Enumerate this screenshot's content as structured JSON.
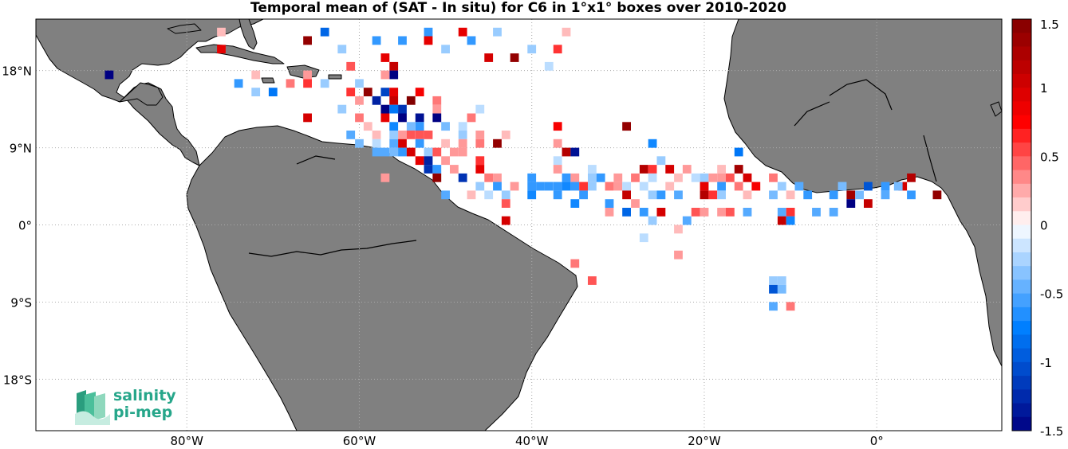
{
  "title": "Temporal mean of (SAT - In situ) for C6 in 1°x1° boxes over 2010-2020",
  "map": {
    "lat_ticks": [
      {
        "value": 18,
        "label": "18°N"
      },
      {
        "value": 9,
        "label": "9°N"
      },
      {
        "value": 0,
        "label": "0°"
      },
      {
        "value": -9,
        "label": "9°S"
      },
      {
        "value": -18,
        "label": "18°S"
      }
    ],
    "lon_ticks": [
      {
        "value": -80,
        "label": "80°W"
      },
      {
        "value": -60,
        "label": "60°W"
      },
      {
        "value": -40,
        "label": "40°W"
      },
      {
        "value": -20,
        "label": "20°W"
      },
      {
        "value": 0,
        "label": "0°"
      }
    ],
    "lon_range": [
      -97.5,
      14.5
    ],
    "lat_range": [
      -24,
      24
    ]
  },
  "colorbar": {
    "min": -1.5,
    "max": 1.5,
    "tick_labels": [
      "1.5",
      "1",
      "0.5",
      "0",
      "-0.5",
      "-1",
      "-1.5"
    ]
  },
  "logo": {
    "line1": "salinity",
    "line2": "pi-mep"
  },
  "colors": {
    "land": "#808080",
    "coast": "#000000",
    "grid": "#aaaaaa"
  },
  "chart_data": {
    "type": "heatmap",
    "title": "Temporal mean of (SAT - In situ) for C6 in 1°x1° boxes over 2010-2020",
    "xlabel": "",
    "ylabel": "",
    "xlim": [
      -97.5,
      14.5
    ],
    "ylim": [
      -24,
      24
    ],
    "colorbar_range": [
      -1.5,
      1.5
    ],
    "cells": [
      {
        "lon": -76,
        "lat": 22.5,
        "v": 0.2
      },
      {
        "lon": -64,
        "lat": 22.5,
        "v": -0.9
      },
      {
        "lon": -52,
        "lat": 22.5,
        "v": -0.6
      },
      {
        "lon": -48,
        "lat": 22.5,
        "v": 0.9
      },
      {
        "lon": -44,
        "lat": 22.5,
        "v": -0.3
      },
      {
        "lon": -36,
        "lat": 22.5,
        "v": 0.2
      },
      {
        "lon": -66,
        "lat": 21.5,
        "v": 1.4
      },
      {
        "lon": -58,
        "lat": 21.5,
        "v": -0.6
      },
      {
        "lon": -55,
        "lat": 21.5,
        "v": -0.6
      },
      {
        "lon": -52,
        "lat": 21.5,
        "v": 0.9
      },
      {
        "lon": -47,
        "lat": 21.5,
        "v": -0.6
      },
      {
        "lon": -76,
        "lat": 20.5,
        "v": 0.9
      },
      {
        "lon": -62,
        "lat": 20.5,
        "v": -0.3
      },
      {
        "lon": -50,
        "lat": 20.5,
        "v": -0.3
      },
      {
        "lon": -40,
        "lat": 20.5,
        "v": -0.3
      },
      {
        "lon": -37,
        "lat": 20.5,
        "v": 0.6
      },
      {
        "lon": -45,
        "lat": 19.5,
        "v": 1.0
      },
      {
        "lon": -42,
        "lat": 19.5,
        "v": 1.4
      },
      {
        "lon": -57,
        "lat": 19.5,
        "v": 0.9
      },
      {
        "lon": -61,
        "lat": 18.5,
        "v": 0.5
      },
      {
        "lon": -56,
        "lat": 18.5,
        "v": 1.1
      },
      {
        "lon": -38,
        "lat": 18.5,
        "v": -0.2
      },
      {
        "lon": -56,
        "lat": 17.5,
        "v": -1.5
      },
      {
        "lon": -89,
        "lat": 17.5,
        "v": -1.5
      },
      {
        "lon": -72,
        "lat": 17.5,
        "v": 0.2
      },
      {
        "lon": -66,
        "lat": 17.5,
        "v": 0.3
      },
      {
        "lon": -57,
        "lat": 17.5,
        "v": 0.3
      },
      {
        "lon": -74,
        "lat": 16.5,
        "v": -0.6
      },
      {
        "lon": -68,
        "lat": 16.5,
        "v": 0.4
      },
      {
        "lon": -66,
        "lat": 16.5,
        "v": 0.6
      },
      {
        "lon": -64,
        "lat": 16.5,
        "v": -0.3
      },
      {
        "lon": -60,
        "lat": 16.5,
        "v": -0.3
      },
      {
        "lon": -59,
        "lat": 15.5,
        "v": 1.4
      },
      {
        "lon": -57,
        "lat": 15.5,
        "v": -1.1
      },
      {
        "lon": -56,
        "lat": 15.5,
        "v": 0.9
      },
      {
        "lon": -53,
        "lat": 15.5,
        "v": 0.8
      },
      {
        "lon": -70,
        "lat": 15.5,
        "v": -0.8
      },
      {
        "lon": -72,
        "lat": 15.5,
        "v": -0.3
      },
      {
        "lon": -61,
        "lat": 15.5,
        "v": 0.6
      },
      {
        "lon": -58,
        "lat": 14.5,
        "v": -1.3
      },
      {
        "lon": -56,
        "lat": 14.5,
        "v": 1.1
      },
      {
        "lon": -54,
        "lat": 14.5,
        "v": 1.5
      },
      {
        "lon": -51,
        "lat": 14.5,
        "v": 0.4
      },
      {
        "lon": -60,
        "lat": 14.5,
        "v": 0.3
      },
      {
        "lon": -57,
        "lat": 13.5,
        "v": -1.5
      },
      {
        "lon": -56,
        "lat": 13.5,
        "v": -0.8
      },
      {
        "lon": -55,
        "lat": 13.5,
        "v": -1.2
      },
      {
        "lon": -51,
        "lat": 13.5,
        "v": 0.3
      },
      {
        "lon": -62,
        "lat": 13.5,
        "v": -0.3
      },
      {
        "lon": -46,
        "lat": 13.5,
        "v": -0.2
      },
      {
        "lon": -66,
        "lat": 12.5,
        "v": 1.0
      },
      {
        "lon": -60,
        "lat": 12.5,
        "v": 0.4
      },
      {
        "lon": -57,
        "lat": 12.5,
        "v": 0.9
      },
      {
        "lon": -55,
        "lat": 12.5,
        "v": -1.5
      },
      {
        "lon": -53,
        "lat": 12.5,
        "v": -1.4
      },
      {
        "lon": -51,
        "lat": 12.5,
        "v": -1.5
      },
      {
        "lon": -47,
        "lat": 12.5,
        "v": 0.4
      },
      {
        "lon": -59,
        "lat": 11.5,
        "v": 0.2
      },
      {
        "lon": -56,
        "lat": 11.5,
        "v": -0.7
      },
      {
        "lon": -54,
        "lat": 11.5,
        "v": -0.4
      },
      {
        "lon": -53,
        "lat": 11.5,
        "v": -0.6
      },
      {
        "lon": -50,
        "lat": 11.5,
        "v": -0.4
      },
      {
        "lon": -48,
        "lat": 11.5,
        "v": -0.2
      },
      {
        "lon": -37,
        "lat": 11.5,
        "v": 0.8
      },
      {
        "lon": -29,
        "lat": 11.5,
        "v": 1.4
      },
      {
        "lon": -61,
        "lat": 10.5,
        "v": -0.5
      },
      {
        "lon": -58,
        "lat": 10.5,
        "v": 0.2
      },
      {
        "lon": -56,
        "lat": 10.5,
        "v": -0.3
      },
      {
        "lon": -55,
        "lat": 10.5,
        "v": 0.3
      },
      {
        "lon": -54,
        "lat": 10.5,
        "v": 0.5
      },
      {
        "lon": -53,
        "lat": 10.5,
        "v": 0.5
      },
      {
        "lon": -52,
        "lat": 10.5,
        "v": 0.5
      },
      {
        "lon": -48,
        "lat": 10.5,
        "v": -0.3
      },
      {
        "lon": -46,
        "lat": 10.5,
        "v": 0.3
      },
      {
        "lon": -43,
        "lat": 10.5,
        "v": 0.2
      },
      {
        "lon": -60,
        "lat": 9.5,
        "v": -0.4
      },
      {
        "lon": -58,
        "lat": 9.5,
        "v": -0.2
      },
      {
        "lon": -56,
        "lat": 9.5,
        "v": -0.5
      },
      {
        "lon": -55,
        "lat": 9.5,
        "v": 1.0
      },
      {
        "lon": -53,
        "lat": 9.5,
        "v": -0.6
      },
      {
        "lon": -50,
        "lat": 9.5,
        "v": 0.2
      },
      {
        "lon": -48,
        "lat": 9.5,
        "v": 0.3
      },
      {
        "lon": -46,
        "lat": 9.5,
        "v": 0.4
      },
      {
        "lon": -44,
        "lat": 9.5,
        "v": 1.4
      },
      {
        "lon": -37,
        "lat": 9.5,
        "v": 0.3
      },
      {
        "lon": -26,
        "lat": 9.5,
        "v": -0.7
      },
      {
        "lon": -58,
        "lat": 8.5,
        "v": -0.5
      },
      {
        "lon": -57,
        "lat": 8.5,
        "v": -0.5
      },
      {
        "lon": -56,
        "lat": 8.5,
        "v": -0.4
      },
      {
        "lon": -55,
        "lat": 8.5,
        "v": -0.6
      },
      {
        "lon": -54,
        "lat": 8.5,
        "v": 1.0
      },
      {
        "lon": -52,
        "lat": 8.5,
        "v": -0.3
      },
      {
        "lon": -51,
        "lat": 8.5,
        "v": 0.5
      },
      {
        "lon": -49,
        "lat": 8.5,
        "v": 0.3
      },
      {
        "lon": -48,
        "lat": 8.5,
        "v": 0.3
      },
      {
        "lon": -36,
        "lat": 8.5,
        "v": 1.2
      },
      {
        "lon": -35,
        "lat": 8.5,
        "v": -1.4
      },
      {
        "lon": -16,
        "lat": 8.5,
        "v": -0.8
      },
      {
        "lon": -53,
        "lat": 7.5,
        "v": 0.9
      },
      {
        "lon": -52,
        "lat": 7.5,
        "v": -1.3
      },
      {
        "lon": -50,
        "lat": 7.5,
        "v": 0.3
      },
      {
        "lon": -46,
        "lat": 7.5,
        "v": 0.6
      },
      {
        "lon": -37,
        "lat": 7.5,
        "v": -0.2
      },
      {
        "lon": -25,
        "lat": 7.5,
        "v": -0.3
      },
      {
        "lon": -52,
        "lat": 6.5,
        "v": -1.2
      },
      {
        "lon": -51,
        "lat": 6.5,
        "v": -0.6
      },
      {
        "lon": -49,
        "lat": 6.5,
        "v": 0.3
      },
      {
        "lon": -46,
        "lat": 6.5,
        "v": 0.9
      },
      {
        "lon": -37,
        "lat": 6.5,
        "v": 0.3
      },
      {
        "lon": -33,
        "lat": 6.5,
        "v": -0.2
      },
      {
        "lon": -27,
        "lat": 6.5,
        "v": 1.2
      },
      {
        "lon": -26,
        "lat": 6.5,
        "v": 0.6
      },
      {
        "lon": -24,
        "lat": 6.5,
        "v": 1.0
      },
      {
        "lon": -22,
        "lat": 6.5,
        "v": 0.3
      },
      {
        "lon": -18,
        "lat": 6.5,
        "v": 0.2
      },
      {
        "lon": -16,
        "lat": 6.5,
        "v": 1.3
      },
      {
        "lon": -57,
        "lat": 5.5,
        "v": 0.3
      },
      {
        "lon": -51,
        "lat": 5.5,
        "v": 1.4
      },
      {
        "lon": -48,
        "lat": 5.5,
        "v": -1.2
      },
      {
        "lon": -45,
        "lat": 5.5,
        "v": 0.4
      },
      {
        "lon": -44,
        "lat": 5.5,
        "v": 0.3
      },
      {
        "lon": -40,
        "lat": 5.5,
        "v": -0.6
      },
      {
        "lon": -36,
        "lat": 5.5,
        "v": -0.6
      },
      {
        "lon": -35,
        "lat": 5.5,
        "v": 0.3
      },
      {
        "lon": -33,
        "lat": 5.5,
        "v": -0.3
      },
      {
        "lon": -32,
        "lat": 5.5,
        "v": -0.6
      },
      {
        "lon": -30,
        "lat": 5.5,
        "v": 0.3
      },
      {
        "lon": -28,
        "lat": 5.5,
        "v": 0.4
      },
      {
        "lon": -26,
        "lat": 5.5,
        "v": -0.2
      },
      {
        "lon": -23,
        "lat": 5.5,
        "v": 0.2
      },
      {
        "lon": -21,
        "lat": 5.5,
        "v": -0.2
      },
      {
        "lon": -20,
        "lat": 5.5,
        "v": -0.3
      },
      {
        "lon": -19,
        "lat": 5.5,
        "v": 0.3
      },
      {
        "lon": -18,
        "lat": 5.5,
        "v": 0.3
      },
      {
        "lon": -17,
        "lat": 5.5,
        "v": 0.5
      },
      {
        "lon": -15,
        "lat": 5.5,
        "v": 1.0
      },
      {
        "lon": -12,
        "lat": 5.5,
        "v": 0.4
      },
      {
        "lon": 4,
        "lat": 5.5,
        "v": 1.2
      },
      {
        "lon": -46,
        "lat": 4.5,
        "v": -0.3
      },
      {
        "lon": -44,
        "lat": 4.5,
        "v": -0.6
      },
      {
        "lon": -42,
        "lat": 4.5,
        "v": 0.3
      },
      {
        "lon": -40,
        "lat": 4.5,
        "v": -0.6
      },
      {
        "lon": -39,
        "lat": 4.5,
        "v": -0.6
      },
      {
        "lon": -38,
        "lat": 4.5,
        "v": -0.6
      },
      {
        "lon": -37,
        "lat": 4.5,
        "v": -0.6
      },
      {
        "lon": -36,
        "lat": 4.5,
        "v": -0.7
      },
      {
        "lon": -35,
        "lat": 4.5,
        "v": -0.6
      },
      {
        "lon": -34,
        "lat": 4.5,
        "v": 0.6
      },
      {
        "lon": -33,
        "lat": 4.5,
        "v": -0.3
      },
      {
        "lon": -31,
        "lat": 4.5,
        "v": 0.4
      },
      {
        "lon": -30,
        "lat": 4.5,
        "v": 0.3
      },
      {
        "lon": -29,
        "lat": 4.5,
        "v": -0.2
      },
      {
        "lon": -27,
        "lat": 4.5,
        "v": -0.2
      },
      {
        "lon": -24,
        "lat": 4.5,
        "v": 0.2
      },
      {
        "lon": -20,
        "lat": 4.5,
        "v": 0.9
      },
      {
        "lon": -18,
        "lat": 4.5,
        "v": -0.6
      },
      {
        "lon": -16,
        "lat": 4.5,
        "v": 0.4
      },
      {
        "lon": -14,
        "lat": 4.5,
        "v": 0.8
      },
      {
        "lon": -11,
        "lat": 4.5,
        "v": -0.3
      },
      {
        "lon": -9,
        "lat": 4.5,
        "v": -0.5
      },
      {
        "lon": -4,
        "lat": 4.5,
        "v": -0.4
      },
      {
        "lon": -1,
        "lat": 4.5,
        "v": -1.0
      },
      {
        "lon": 1,
        "lat": 4.5,
        "v": -0.6
      },
      {
        "lon": 3,
        "lat": 4.5,
        "v": 1.0
      },
      {
        "lon": 2.5,
        "lat": 4.5,
        "v": -0.4
      },
      {
        "lon": -50,
        "lat": 3.5,
        "v": -0.5
      },
      {
        "lon": -47,
        "lat": 3.5,
        "v": 0.2
      },
      {
        "lon": -45,
        "lat": 3.5,
        "v": -0.2
      },
      {
        "lon": -43,
        "lat": 3.5,
        "v": -0.3
      },
      {
        "lon": -40,
        "lat": 3.5,
        "v": -0.7
      },
      {
        "lon": -37,
        "lat": 3.5,
        "v": -0.6
      },
      {
        "lon": -34,
        "lat": 3.5,
        "v": -0.6
      },
      {
        "lon": -29,
        "lat": 3.5,
        "v": 1.1
      },
      {
        "lon": -26,
        "lat": 3.5,
        "v": -0.3
      },
      {
        "lon": -25,
        "lat": 3.5,
        "v": -0.6
      },
      {
        "lon": -23,
        "lat": 3.5,
        "v": -0.5
      },
      {
        "lon": -20,
        "lat": 3.5,
        "v": 1.2
      },
      {
        "lon": -19,
        "lat": 3.5,
        "v": 0.6
      },
      {
        "lon": -18,
        "lat": 3.5,
        "v": -0.3
      },
      {
        "lon": -15,
        "lat": 3.5,
        "v": 0.2
      },
      {
        "lon": -12,
        "lat": 3.5,
        "v": -0.4
      },
      {
        "lon": -10,
        "lat": 3.5,
        "v": 0.2
      },
      {
        "lon": -8,
        "lat": 3.5,
        "v": -0.6
      },
      {
        "lon": -5,
        "lat": 3.5,
        "v": -0.6
      },
      {
        "lon": -3,
        "lat": 3.5,
        "v": 1.3
      },
      {
        "lon": -2,
        "lat": 3.5,
        "v": -0.4
      },
      {
        "lon": 1,
        "lat": 3.5,
        "v": -0.5
      },
      {
        "lon": 4,
        "lat": 3.5,
        "v": -0.6
      },
      {
        "lon": 7,
        "lat": 3.5,
        "v": 1.4
      },
      {
        "lon": -43,
        "lat": 2.5,
        "v": 0.5
      },
      {
        "lon": -35,
        "lat": 2.5,
        "v": -0.7
      },
      {
        "lon": -3,
        "lat": 2.5,
        "v": -1.5
      },
      {
        "lon": -1,
        "lat": 2.5,
        "v": 1.1
      },
      {
        "lon": -31,
        "lat": 2.5,
        "v": -0.6
      },
      {
        "lon": -28,
        "lat": 2.5,
        "v": 0.3
      },
      {
        "lon": -31,
        "lat": 1.5,
        "v": 0.3
      },
      {
        "lon": -29,
        "lat": 1.5,
        "v": -0.9
      },
      {
        "lon": -27,
        "lat": 1.5,
        "v": -0.6
      },
      {
        "lon": -25,
        "lat": 1.5,
        "v": 1.0
      },
      {
        "lon": -21,
        "lat": 1.5,
        "v": 0.5
      },
      {
        "lon": -20,
        "lat": 1.5,
        "v": 0.3
      },
      {
        "lon": -18,
        "lat": 1.5,
        "v": 0.3
      },
      {
        "lon": -17,
        "lat": 1.5,
        "v": 0.5
      },
      {
        "lon": -15,
        "lat": 1.5,
        "v": -0.5
      },
      {
        "lon": -11,
        "lat": 1.5,
        "v": -0.5
      },
      {
        "lon": -10,
        "lat": 1.5,
        "v": 0.6
      },
      {
        "lon": -7,
        "lat": 1.5,
        "v": -0.5
      },
      {
        "lon": -5,
        "lat": 1.5,
        "v": -0.5
      },
      {
        "lon": -43,
        "lat": 0.5,
        "v": 1.0
      },
      {
        "lon": -26,
        "lat": 0.5,
        "v": -0.3
      },
      {
        "lon": -22,
        "lat": 0.5,
        "v": -0.5
      },
      {
        "lon": -11,
        "lat": 0.5,
        "v": 1.1
      },
      {
        "lon": -10,
        "lat": 0.5,
        "v": -0.7
      },
      {
        "lon": -23,
        "lat": -0.5,
        "v": 0.2
      },
      {
        "lon": -27,
        "lat": -1.5,
        "v": -0.2
      },
      {
        "lon": -23,
        "lat": -3.5,
        "v": 0.3
      },
      {
        "lon": -35,
        "lat": -4.5,
        "v": 0.4
      },
      {
        "lon": -12,
        "lat": -6.5,
        "v": -0.3
      },
      {
        "lon": -33,
        "lat": -6.5,
        "v": 0.5
      },
      {
        "lon": -11,
        "lat": -6.5,
        "v": -0.3
      },
      {
        "lon": -12,
        "lat": -7.5,
        "v": -1.0
      },
      {
        "lon": -11,
        "lat": -7.5,
        "v": -0.4
      },
      {
        "lon": -12,
        "lat": -9.5,
        "v": -0.5
      },
      {
        "lon": -10,
        "lat": -9.5,
        "v": 0.4
      }
    ]
  }
}
